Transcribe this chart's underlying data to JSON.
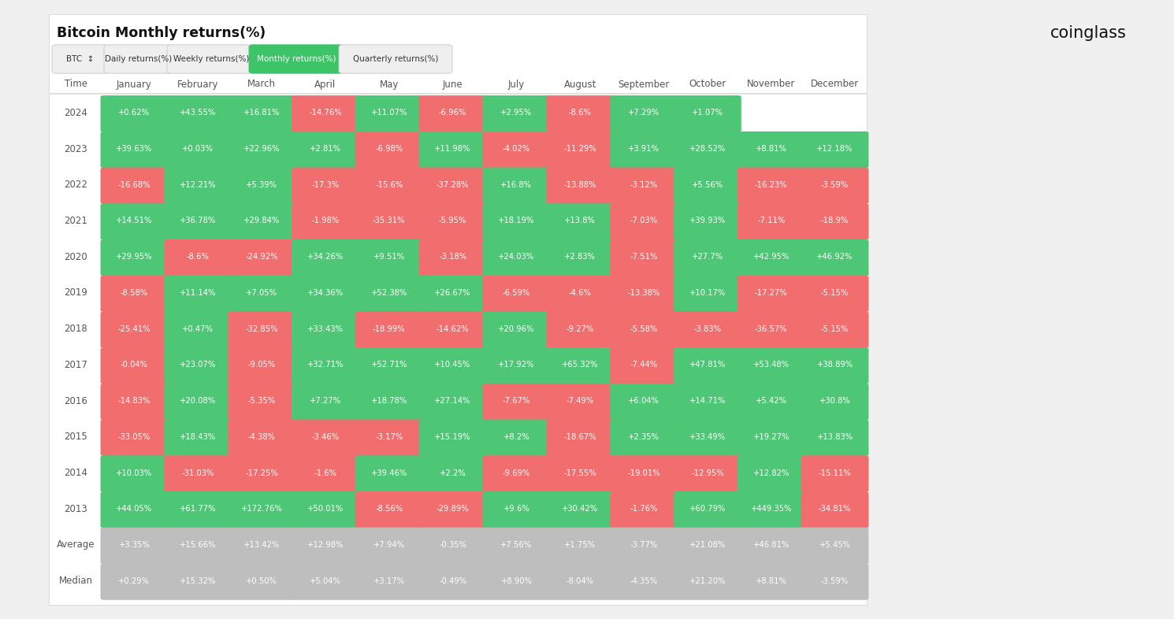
{
  "title": "Bitcoin Monthly returns(%)",
  "logo_text": "coinglass",
  "months": [
    "January",
    "February",
    "March",
    "April",
    "May",
    "June",
    "July",
    "August",
    "September",
    "October",
    "November",
    "December"
  ],
  "years": [
    "2024",
    "2023",
    "2022",
    "2021",
    "2020",
    "2019",
    "2018",
    "2017",
    "2016",
    "2015",
    "2014",
    "2013"
  ],
  "data": {
    "2024": [
      "+0.62%",
      "+43.55%",
      "+16.81%",
      "-14.76%",
      "+11.07%",
      "-6.96%",
      "+2.95%",
      "-8.6%",
      "+7.29%",
      "+1.07%",
      "",
      ""
    ],
    "2023": [
      "+39.63%",
      "+0.03%",
      "+22.96%",
      "+2.81%",
      "-6.98%",
      "+11.98%",
      "-4.02%",
      "-11.29%",
      "+3.91%",
      "+28.52%",
      "+8.81%",
      "+12.18%"
    ],
    "2022": [
      "-16.68%",
      "+12.21%",
      "+5.39%",
      "-17.3%",
      "-15.6%",
      "-37.28%",
      "+16.8%",
      "-13.88%",
      "-3.12%",
      "+5.56%",
      "-16.23%",
      "-3.59%"
    ],
    "2021": [
      "+14.51%",
      "+36.78%",
      "+29.84%",
      "-1.98%",
      "-35.31%",
      "-5.95%",
      "+18.19%",
      "+13.8%",
      "-7.03%",
      "+39.93%",
      "-7.11%",
      "-18.9%"
    ],
    "2020": [
      "+29.95%",
      "-8.6%",
      "-24.92%",
      "+34.26%",
      "+9.51%",
      "-3.18%",
      "+24.03%",
      "+2.83%",
      "-7.51%",
      "+27.7%",
      "+42.95%",
      "+46.92%"
    ],
    "2019": [
      "-8.58%",
      "+11.14%",
      "+7.05%",
      "+34.36%",
      "+52.38%",
      "+26.67%",
      "-6.59%",
      "-4.6%",
      "-13.38%",
      "+10.17%",
      "-17.27%",
      "-5.15%"
    ],
    "2018": [
      "-25.41%",
      "+0.47%",
      "-32.85%",
      "+33.43%",
      "-18.99%",
      "-14.62%",
      "+20.96%",
      "-9.27%",
      "-5.58%",
      "-3.83%",
      "-36.57%",
      "-5.15%"
    ],
    "2017": [
      "-0.04%",
      "+23.07%",
      "-9.05%",
      "+32.71%",
      "+52.71%",
      "+10.45%",
      "+17.92%",
      "+65.32%",
      "-7.44%",
      "+47.81%",
      "+53.48%",
      "+38.89%"
    ],
    "2016": [
      "-14.83%",
      "+20.08%",
      "-5.35%",
      "+7.27%",
      "+18.78%",
      "+27.14%",
      "-7.67%",
      "-7.49%",
      "+6.04%",
      "+14.71%",
      "+5.42%",
      "+30.8%"
    ],
    "2015": [
      "-33.05%",
      "+18.43%",
      "-4.38%",
      "-3.46%",
      "-3.17%",
      "+15.19%",
      "+8.2%",
      "-18.67%",
      "+2.35%",
      "+33.49%",
      "+19.27%",
      "+13.83%"
    ],
    "2014": [
      "+10.03%",
      "-31.03%",
      "-17.25%",
      "-1.6%",
      "+39.46%",
      "+2.2%",
      "-9.69%",
      "-17.55%",
      "-19.01%",
      "-12.95%",
      "+12.82%",
      "-15.11%"
    ],
    "2013": [
      "+44.05%",
      "+61.77%",
      "+172.76%",
      "+50.01%",
      "-8.56%",
      "-29.89%",
      "+9.6%",
      "+30.42%",
      "-1.76%",
      "+60.79%",
      "+449.35%",
      "-34.81%"
    ]
  },
  "average": [
    "+3.35%",
    "+15.66%",
    "+13.42%",
    "+12.98%",
    "+7.94%",
    "-0.35%",
    "+7.56%",
    "+1.75%",
    "-3.77%",
    "+21.08%",
    "+46.81%",
    "+5.45%"
  ],
  "median": [
    "+0.29%",
    "+15.32%",
    "+0.50%",
    "+5.04%",
    "+3.17%",
    "-0.49%",
    "+8.90%",
    "-8.04%",
    "-4.35%",
    "+21.20%",
    "+8.81%",
    "-3.59%"
  ],
  "green_color": "#4DC776",
  "red_color": "#F26E6E",
  "gray_color": "#BEBEBE",
  "bg_color": "#F0F0F0",
  "white_color": "#FFFFFF",
  "text_white": "#FFFFFF",
  "text_dark": "#333333",
  "text_medium": "#555555",
  "tab_active_bg": "#3EC468",
  "tab_active_text": "#FFFFFF",
  "tab_inactive_bg": "#EFEFEF",
  "tab_inactive_text": "#333333",
  "tab_border": "#CCCCCC"
}
